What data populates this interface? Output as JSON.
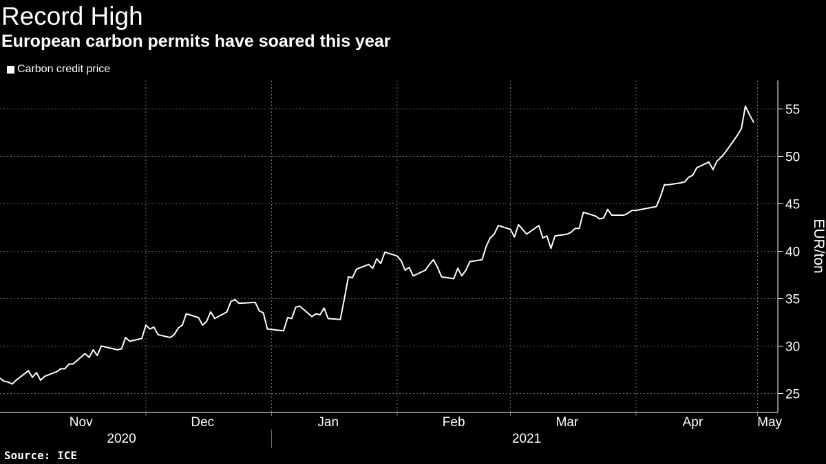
{
  "title": "Record High",
  "subtitle": "European carbon permits have soared this year",
  "legend_label": "Carbon credit price",
  "source": "Source: ICE",
  "colors": {
    "background": "#000000",
    "line": "#ffffff",
    "grid": "#6e6e6e"
  },
  "chart_data": {
    "type": "line",
    "title": "Record High",
    "subtitle": "European carbon permits have soared this year",
    "ylabel": "EUR/ton",
    "y_axis_side": "right",
    "ylim": [
      23,
      58
    ],
    "y_ticks": [
      25,
      30,
      35,
      40,
      45,
      50,
      55
    ],
    "grid": true,
    "legend": "top-left",
    "x_range": [
      "2020-10-26",
      "2021-05-06"
    ],
    "month_ticks": [
      {
        "label": "Nov",
        "date": "2020-11-15"
      },
      {
        "label": "Dec",
        "date": "2020-12-15"
      },
      {
        "label": "Jan",
        "date": "2021-01-15"
      },
      {
        "label": "Feb",
        "date": "2021-02-15"
      },
      {
        "label": "Mar",
        "date": "2021-03-15"
      },
      {
        "label": "Apr",
        "date": "2021-04-15"
      },
      {
        "label": "May",
        "date": "2021-05-04"
      }
    ],
    "month_boundaries": [
      "2020-12-01",
      "2021-01-01",
      "2021-02-01",
      "2021-03-01",
      "2021-04-01",
      "2021-05-01"
    ],
    "year_labels": [
      {
        "label": "2020",
        "date": "2020-11-25"
      },
      {
        "label": "2021",
        "date": "2021-03-05"
      }
    ],
    "year_boundaries": [
      "2021-01-01"
    ],
    "series": [
      {
        "name": "Carbon credit price",
        "points": [
          [
            "2020-10-26",
            26.6
          ],
          [
            "2020-10-27",
            26.3
          ],
          [
            "2020-10-28",
            26.2
          ],
          [
            "2020-10-29",
            26.0
          ],
          [
            "2020-10-30",
            26.4
          ],
          [
            "2020-11-02",
            27.4
          ],
          [
            "2020-11-03",
            26.7
          ],
          [
            "2020-11-04",
            27.2
          ],
          [
            "2020-11-05",
            26.4
          ],
          [
            "2020-11-06",
            26.8
          ],
          [
            "2020-11-09",
            27.3
          ],
          [
            "2020-11-10",
            27.6
          ],
          [
            "2020-11-11",
            27.6
          ],
          [
            "2020-11-12",
            28.1
          ],
          [
            "2020-11-13",
            28.1
          ],
          [
            "2020-11-16",
            29.2
          ],
          [
            "2020-11-17",
            28.8
          ],
          [
            "2020-11-18",
            29.6
          ],
          [
            "2020-11-19",
            29.0
          ],
          [
            "2020-11-20",
            30.0
          ],
          [
            "2020-11-23",
            29.7
          ],
          [
            "2020-11-24",
            29.6
          ],
          [
            "2020-11-25",
            29.7
          ],
          [
            "2020-11-26",
            30.9
          ],
          [
            "2020-11-27",
            30.5
          ],
          [
            "2020-11-30",
            30.8
          ],
          [
            "2020-12-01",
            32.2
          ],
          [
            "2020-12-02",
            31.8
          ],
          [
            "2020-12-03",
            32.0
          ],
          [
            "2020-12-04",
            31.2
          ],
          [
            "2020-12-07",
            30.9
          ],
          [
            "2020-12-08",
            31.2
          ],
          [
            "2020-12-09",
            31.9
          ],
          [
            "2020-12-10",
            32.2
          ],
          [
            "2020-12-11",
            33.4
          ],
          [
            "2020-12-14",
            33.0
          ],
          [
            "2020-12-15",
            32.2
          ],
          [
            "2020-12-16",
            32.6
          ],
          [
            "2020-12-17",
            33.6
          ],
          [
            "2020-12-18",
            32.9
          ],
          [
            "2020-12-21",
            33.6
          ],
          [
            "2020-12-22",
            34.7
          ],
          [
            "2020-12-23",
            34.9
          ],
          [
            "2020-12-24",
            34.5
          ],
          [
            "2020-12-28",
            34.6
          ],
          [
            "2020-12-29",
            33.7
          ],
          [
            "2020-12-30",
            33.5
          ],
          [
            "2020-12-31",
            31.8
          ],
          [
            "2021-01-04",
            31.6
          ],
          [
            "2021-01-05",
            33.0
          ],
          [
            "2021-01-06",
            32.9
          ],
          [
            "2021-01-07",
            34.1
          ],
          [
            "2021-01-08",
            34.2
          ],
          [
            "2021-01-11",
            33.1
          ],
          [
            "2021-01-12",
            33.4
          ],
          [
            "2021-01-13",
            33.3
          ],
          [
            "2021-01-14",
            34.0
          ],
          [
            "2021-01-15",
            32.9
          ],
          [
            "2021-01-18",
            32.8
          ],
          [
            "2021-01-19",
            35.0
          ],
          [
            "2021-01-20",
            37.3
          ],
          [
            "2021-01-21",
            37.2
          ],
          [
            "2021-01-22",
            38.1
          ],
          [
            "2021-01-25",
            38.6
          ],
          [
            "2021-01-26",
            38.2
          ],
          [
            "2021-01-27",
            39.2
          ],
          [
            "2021-01-28",
            38.7
          ],
          [
            "2021-01-29",
            39.9
          ],
          [
            "2021-02-01",
            39.5
          ],
          [
            "2021-02-02",
            39.0
          ],
          [
            "2021-02-03",
            38.0
          ],
          [
            "2021-02-04",
            38.3
          ],
          [
            "2021-02-05",
            37.4
          ],
          [
            "2021-02-08",
            38.0
          ],
          [
            "2021-02-09",
            38.6
          ],
          [
            "2021-02-10",
            39.1
          ],
          [
            "2021-02-11",
            38.3
          ],
          [
            "2021-02-12",
            37.3
          ],
          [
            "2021-02-15",
            37.1
          ],
          [
            "2021-02-16",
            38.2
          ],
          [
            "2021-02-17",
            37.4
          ],
          [
            "2021-02-18",
            38.0
          ],
          [
            "2021-02-19",
            38.9
          ],
          [
            "2021-02-22",
            39.1
          ],
          [
            "2021-02-23",
            40.5
          ],
          [
            "2021-02-24",
            41.4
          ],
          [
            "2021-02-25",
            41.8
          ],
          [
            "2021-02-26",
            42.7
          ],
          [
            "2021-03-01",
            42.3
          ],
          [
            "2021-03-02",
            41.5
          ],
          [
            "2021-03-03",
            42.8
          ],
          [
            "2021-03-04",
            42.3
          ],
          [
            "2021-03-05",
            41.8
          ],
          [
            "2021-03-08",
            42.7
          ],
          [
            "2021-03-09",
            41.4
          ],
          [
            "2021-03-10",
            41.6
          ],
          [
            "2021-03-11",
            40.3
          ],
          [
            "2021-03-12",
            41.6
          ],
          [
            "2021-03-15",
            41.8
          ],
          [
            "2021-03-16",
            42.0
          ],
          [
            "2021-03-17",
            42.4
          ],
          [
            "2021-03-18",
            42.4
          ],
          [
            "2021-03-19",
            44.1
          ],
          [
            "2021-03-22",
            43.7
          ],
          [
            "2021-03-23",
            43.4
          ],
          [
            "2021-03-24",
            43.5
          ],
          [
            "2021-03-25",
            44.4
          ],
          [
            "2021-03-26",
            43.8
          ],
          [
            "2021-03-29",
            43.8
          ],
          [
            "2021-03-30",
            44.0
          ],
          [
            "2021-03-31",
            44.3
          ],
          [
            "2021-04-01",
            44.3
          ],
          [
            "2021-04-06",
            44.7
          ],
          [
            "2021-04-07",
            45.7
          ],
          [
            "2021-04-08",
            47.0
          ],
          [
            "2021-04-09",
            47.0
          ],
          [
            "2021-04-12",
            47.2
          ],
          [
            "2021-04-13",
            47.3
          ],
          [
            "2021-04-14",
            47.8
          ],
          [
            "2021-04-15",
            48.0
          ],
          [
            "2021-04-16",
            48.8
          ],
          [
            "2021-04-19",
            49.4
          ],
          [
            "2021-04-20",
            48.6
          ],
          [
            "2021-04-21",
            49.5
          ],
          [
            "2021-04-22",
            49.9
          ],
          [
            "2021-04-23",
            50.4
          ],
          [
            "2021-04-26",
            52.2
          ],
          [
            "2021-04-27",
            52.9
          ],
          [
            "2021-04-28",
            55.3
          ],
          [
            "2021-04-29",
            54.4
          ],
          [
            "2021-04-30",
            53.6
          ]
        ]
      }
    ]
  }
}
